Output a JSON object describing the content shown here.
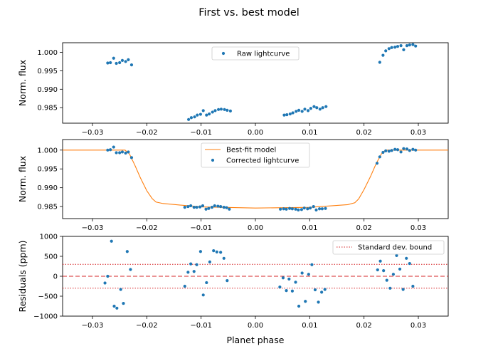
{
  "chart_data": {
    "type": "scatter",
    "title": "First vs. best model",
    "xlabel": "Planet phase",
    "xlim": [
      -0.0355,
      0.0355
    ],
    "x_ticks": [
      -0.03,
      -0.02,
      -0.01,
      0.0,
      0.01,
      0.02,
      0.03
    ],
    "x_tick_labels": [
      "−0.03",
      "−0.02",
      "−0.01",
      "0.00",
      "0.01",
      "0.02",
      "0.03"
    ],
    "panels": [
      {
        "ylabel": "Norm. flux",
        "ylim": [
          0.9808,
          1.0026
        ],
        "y_ticks": [
          0.985,
          0.99,
          0.995,
          1.0
        ],
        "y_tick_labels": [
          "0.985",
          "0.990",
          "0.995",
          "1.000"
        ],
        "legend_position": "top-center",
        "series": [
          {
            "name": "Raw lightcurve",
            "kind": "points",
            "color": "#1f77b4",
            "x": [
              -0.0272,
              -0.0267,
              -0.0261,
              -0.0256,
              -0.025,
              -0.0245,
              -0.0239,
              -0.0234,
              -0.0228,
              -0.0123,
              -0.0118,
              -0.0112,
              -0.0107,
              -0.0101,
              -0.0096,
              -0.009,
              -0.0085,
              -0.0079,
              -0.0074,
              -0.0068,
              -0.0063,
              -0.0057,
              -0.0052,
              -0.0046,
              0.0053,
              0.0058,
              0.0064,
              0.0069,
              0.0075,
              0.008,
              0.0086,
              0.0091,
              0.0097,
              0.0102,
              0.0108,
              0.0113,
              0.0119,
              0.0124,
              0.013,
              0.0229,
              0.0235,
              0.024,
              0.0246,
              0.0251,
              0.0257,
              0.0262,
              0.0268,
              0.0273,
              0.0279,
              0.0284,
              0.029,
              0.0295
            ],
            "y": [
              0.9971,
              0.9972,
              0.9984,
              0.997,
              0.9972,
              0.9978,
              0.9975,
              0.998,
              0.9966,
              0.9818,
              0.9823,
              0.9825,
              0.983,
              0.9832,
              0.9842,
              0.983,
              0.9833,
              0.9838,
              0.9842,
              0.9845,
              0.9846,
              0.9845,
              0.9843,
              0.9841,
              0.983,
              0.9831,
              0.9833,
              0.9836,
              0.984,
              0.9843,
              0.984,
              0.9846,
              0.9842,
              0.9848,
              0.9853,
              0.985,
              0.9846,
              0.985,
              0.9853,
              0.9973,
              0.9992,
              1.0004,
              1.001,
              1.0013,
              1.0014,
              1.0016,
              1.0018,
              1.0007,
              1.0018,
              1.002,
              1.0021,
              1.0017
            ]
          }
        ]
      },
      {
        "ylabel": "Norm. flux",
        "ylim": [
          0.9818,
          1.0028
        ],
        "y_ticks": [
          0.985,
          0.99,
          0.995,
          1.0
        ],
        "y_tick_labels": [
          "0.985",
          "0.990",
          "0.995",
          "1.000"
        ],
        "legend_position": "top-center",
        "series": [
          {
            "name": "Best-fit model",
            "kind": "line",
            "color": "#ff7f0e",
            "x": [
              -0.0355,
              -0.024,
              -0.0232,
              -0.0222,
              -0.0212,
              -0.02,
              -0.019,
              -0.0183,
              -0.017,
              -0.01,
              0.0,
              0.01,
              0.017,
              0.0183,
              0.019,
              0.02,
              0.0212,
              0.0222,
              0.0232,
              0.024,
              0.0355
            ],
            "y": [
              1.0,
              1.0,
              0.999,
              0.996,
              0.9927,
              0.9892,
              0.9871,
              0.9862,
              0.9858,
              0.9849,
              0.9846,
              0.9848,
              0.9855,
              0.986,
              0.987,
              0.9895,
              0.993,
              0.9963,
              0.999,
              1.0,
              1.0
            ]
          },
          {
            "name": "Corrected lightcurve",
            "kind": "points",
            "color": "#1f77b4",
            "x": [
              -0.0272,
              -0.0267,
              -0.0261,
              -0.0256,
              -0.025,
              -0.0245,
              -0.0239,
              -0.0234,
              -0.0228,
              -0.013,
              -0.0124,
              -0.0119,
              -0.0113,
              -0.0108,
              -0.0102,
              -0.0097,
              -0.0091,
              -0.0086,
              -0.008,
              -0.0075,
              -0.0069,
              -0.0064,
              -0.0058,
              -0.0053,
              -0.0048,
              0.0046,
              0.0052,
              0.0057,
              0.0063,
              0.0068,
              0.0074,
              0.0079,
              0.0085,
              0.009,
              0.0096,
              0.0101,
              0.0107,
              0.0112,
              0.0118,
              0.0123,
              0.0129,
              0.0224,
              0.0229,
              0.0235,
              0.024,
              0.0246,
              0.0251,
              0.0257,
              0.0262,
              0.0268,
              0.0273,
              0.0279,
              0.0284,
              0.029,
              0.0295
            ],
            "y": [
              1.0,
              1.0001,
              1.0008,
              0.9993,
              0.9993,
              0.9995,
              0.9992,
              0.9995,
              0.998,
              0.9848,
              0.985,
              0.9852,
              0.9848,
              0.9848,
              0.9849,
              0.9852,
              0.9843,
              0.9845,
              0.9848,
              0.9852,
              0.9851,
              0.985,
              0.9848,
              0.9847,
              0.9843,
              0.9843,
              0.9844,
              0.9843,
              0.9845,
              0.9844,
              0.9843,
              0.9841,
              0.9842,
              0.9846,
              0.9844,
              0.9846,
              0.985,
              0.9841,
              0.9844,
              0.9844,
              0.9845,
              0.9965,
              0.9982,
              0.9994,
              0.9998,
              0.9997,
              0.9999,
              1.0002,
              1.0001,
              0.9995,
              1.0004,
              1.0003,
              0.9999,
              1.0002,
              1.0
            ]
          }
        ]
      },
      {
        "ylabel": "Residuals (ppm)",
        "ylim": [
          -1000,
          1000
        ],
        "y_ticks": [
          -1000,
          -500,
          0,
          500,
          1000
        ],
        "y_tick_labels": [
          "−1000",
          "−500",
          "0",
          "500",
          "1000"
        ],
        "legend_position": "top-right",
        "zero_line": {
          "value": 0,
          "color": "#d62728",
          "style": "dashed"
        },
        "series": [
          {
            "name": "Standard dev. bound",
            "kind": "hlines",
            "color": "#d62728",
            "style": "dotted",
            "values": [
              300,
              -300
            ]
          },
          {
            "name": "",
            "kind": "points",
            "color": "#1f77b4",
            "x": [
              -0.0277,
              -0.0272,
              -0.0265,
              -0.026,
              -0.0255,
              -0.0248,
              -0.0243,
              -0.0236,
              -0.023,
              -0.013,
              -0.0124,
              -0.0119,
              -0.0113,
              -0.0108,
              -0.0101,
              -0.0096,
              -0.009,
              -0.0084,
              -0.0077,
              -0.0071,
              -0.0064,
              -0.0058,
              -0.0052,
              0.0045,
              0.0051,
              0.0057,
              0.0062,
              0.0068,
              0.0074,
              0.008,
              0.0086,
              0.0092,
              0.0098,
              0.0104,
              0.011,
              0.0116,
              0.0122,
              0.0128,
              0.0225,
              0.023,
              0.0236,
              0.0242,
              0.0248,
              0.0254,
              0.026,
              0.0266,
              0.0272,
              0.0278,
              0.0284,
              0.029
            ],
            "y": [
              -170,
              0,
              880,
              -750,
              -800,
              -330,
              -680,
              620,
              170,
              -250,
              100,
              310,
              120,
              290,
              620,
              -470,
              -160,
              360,
              640,
              610,
              600,
              450,
              -110,
              -270,
              -40,
              -360,
              -70,
              -370,
              -150,
              -750,
              80,
              -630,
              50,
              290,
              -340,
              -650,
              -400,
              -330,
              160,
              380,
              140,
              -100,
              -300,
              50,
              520,
              180,
              -330,
              450,
              320,
              -250
            ]
          }
        ]
      }
    ]
  }
}
